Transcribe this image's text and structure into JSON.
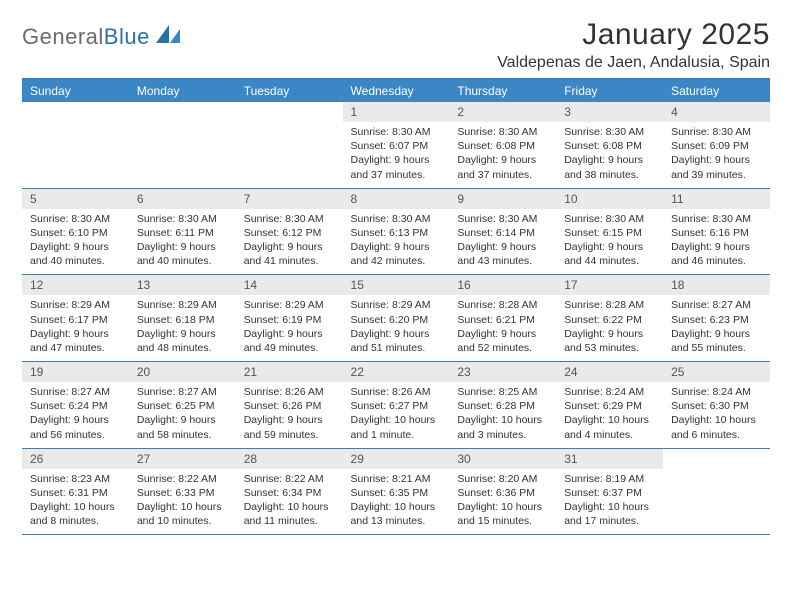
{
  "brand": {
    "part1": "General",
    "part2": "Blue"
  },
  "title": "January 2025",
  "location": "Valdepenas de Jaen, Andalusia, Spain",
  "colors": {
    "header_bg": "#3b86c4",
    "header_text": "#ffffff",
    "rule": "#3b7fb5",
    "daynum_bg": "#eaeaea",
    "text": "#333333",
    "logo_gray": "#6b6b6b",
    "logo_blue": "#2f6fa8"
  },
  "weekdays": [
    "Sunday",
    "Monday",
    "Tuesday",
    "Wednesday",
    "Thursday",
    "Friday",
    "Saturday"
  ],
  "weeks": [
    [
      {
        "empty": true
      },
      {
        "empty": true
      },
      {
        "empty": true
      },
      {
        "n": "1",
        "sr": "8:30 AM",
        "ss": "6:07 PM",
        "dl": "9 hours and 37 minutes."
      },
      {
        "n": "2",
        "sr": "8:30 AM",
        "ss": "6:08 PM",
        "dl": "9 hours and 37 minutes."
      },
      {
        "n": "3",
        "sr": "8:30 AM",
        "ss": "6:08 PM",
        "dl": "9 hours and 38 minutes."
      },
      {
        "n": "4",
        "sr": "8:30 AM",
        "ss": "6:09 PM",
        "dl": "9 hours and 39 minutes."
      }
    ],
    [
      {
        "n": "5",
        "sr": "8:30 AM",
        "ss": "6:10 PM",
        "dl": "9 hours and 40 minutes."
      },
      {
        "n": "6",
        "sr": "8:30 AM",
        "ss": "6:11 PM",
        "dl": "9 hours and 40 minutes."
      },
      {
        "n": "7",
        "sr": "8:30 AM",
        "ss": "6:12 PM",
        "dl": "9 hours and 41 minutes."
      },
      {
        "n": "8",
        "sr": "8:30 AM",
        "ss": "6:13 PM",
        "dl": "9 hours and 42 minutes."
      },
      {
        "n": "9",
        "sr": "8:30 AM",
        "ss": "6:14 PM",
        "dl": "9 hours and 43 minutes."
      },
      {
        "n": "10",
        "sr": "8:30 AM",
        "ss": "6:15 PM",
        "dl": "9 hours and 44 minutes."
      },
      {
        "n": "11",
        "sr": "8:30 AM",
        "ss": "6:16 PM",
        "dl": "9 hours and 46 minutes."
      }
    ],
    [
      {
        "n": "12",
        "sr": "8:29 AM",
        "ss": "6:17 PM",
        "dl": "9 hours and 47 minutes."
      },
      {
        "n": "13",
        "sr": "8:29 AM",
        "ss": "6:18 PM",
        "dl": "9 hours and 48 minutes."
      },
      {
        "n": "14",
        "sr": "8:29 AM",
        "ss": "6:19 PM",
        "dl": "9 hours and 49 minutes."
      },
      {
        "n": "15",
        "sr": "8:29 AM",
        "ss": "6:20 PM",
        "dl": "9 hours and 51 minutes."
      },
      {
        "n": "16",
        "sr": "8:28 AM",
        "ss": "6:21 PM",
        "dl": "9 hours and 52 minutes."
      },
      {
        "n": "17",
        "sr": "8:28 AM",
        "ss": "6:22 PM",
        "dl": "9 hours and 53 minutes."
      },
      {
        "n": "18",
        "sr": "8:27 AM",
        "ss": "6:23 PM",
        "dl": "9 hours and 55 minutes."
      }
    ],
    [
      {
        "n": "19",
        "sr": "8:27 AM",
        "ss": "6:24 PM",
        "dl": "9 hours and 56 minutes."
      },
      {
        "n": "20",
        "sr": "8:27 AM",
        "ss": "6:25 PM",
        "dl": "9 hours and 58 minutes."
      },
      {
        "n": "21",
        "sr": "8:26 AM",
        "ss": "6:26 PM",
        "dl": "9 hours and 59 minutes."
      },
      {
        "n": "22",
        "sr": "8:26 AM",
        "ss": "6:27 PM",
        "dl": "10 hours and 1 minute."
      },
      {
        "n": "23",
        "sr": "8:25 AM",
        "ss": "6:28 PM",
        "dl": "10 hours and 3 minutes."
      },
      {
        "n": "24",
        "sr": "8:24 AM",
        "ss": "6:29 PM",
        "dl": "10 hours and 4 minutes."
      },
      {
        "n": "25",
        "sr": "8:24 AM",
        "ss": "6:30 PM",
        "dl": "10 hours and 6 minutes."
      }
    ],
    [
      {
        "n": "26",
        "sr": "8:23 AM",
        "ss": "6:31 PM",
        "dl": "10 hours and 8 minutes."
      },
      {
        "n": "27",
        "sr": "8:22 AM",
        "ss": "6:33 PM",
        "dl": "10 hours and 10 minutes."
      },
      {
        "n": "28",
        "sr": "8:22 AM",
        "ss": "6:34 PM",
        "dl": "10 hours and 11 minutes."
      },
      {
        "n": "29",
        "sr": "8:21 AM",
        "ss": "6:35 PM",
        "dl": "10 hours and 13 minutes."
      },
      {
        "n": "30",
        "sr": "8:20 AM",
        "ss": "6:36 PM",
        "dl": "10 hours and 15 minutes."
      },
      {
        "n": "31",
        "sr": "8:19 AM",
        "ss": "6:37 PM",
        "dl": "10 hours and 17 minutes."
      },
      {
        "empty": true
      }
    ]
  ],
  "labels": {
    "sunrise": "Sunrise: ",
    "sunset": "Sunset: ",
    "daylight": "Daylight: "
  }
}
